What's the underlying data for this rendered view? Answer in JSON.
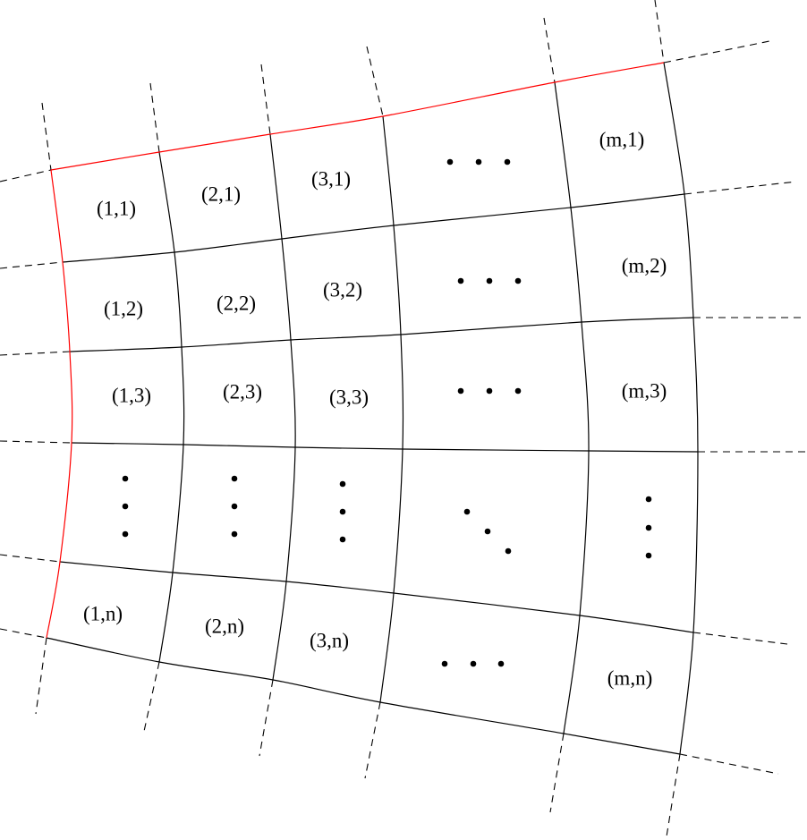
{
  "colors": {
    "boundary": "#ff0000",
    "grid": "#000000",
    "extension": "#000000",
    "background": "#ffffff"
  },
  "labels": {
    "r1": [
      "(1,1)",
      "(2,1)",
      "(3,1)",
      "(m,1)"
    ],
    "r2": [
      "(1,2)",
      "(2,2)",
      "(3,2)",
      "(m,2)"
    ],
    "r3": [
      "(1,3)",
      "(2,3)",
      "(3,3)",
      "(m,3)"
    ],
    "rn": [
      "(1,n)",
      "(2,n)",
      "(3,n)",
      "(m,n)"
    ]
  }
}
